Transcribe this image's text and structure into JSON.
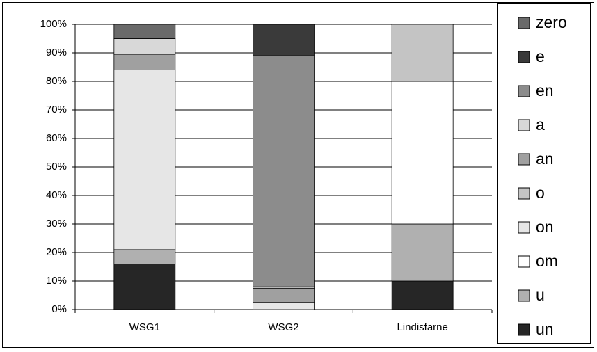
{
  "chart_data": {
    "type": "stacked_bar",
    "categories": [
      "WSG1",
      "WSG2",
      "Lindisfarne"
    ],
    "series": [
      {
        "name": "un",
        "color": "#262626",
        "values": [
          16,
          0,
          10
        ]
      },
      {
        "name": "u",
        "color": "#b0b0b0",
        "values": [
          5,
          0,
          20
        ]
      },
      {
        "name": "om",
        "color": "#ffffff",
        "values": [
          0,
          0,
          50
        ]
      },
      {
        "name": "on",
        "color": "#e6e6e6",
        "values": [
          63,
          2.5,
          0
        ]
      },
      {
        "name": "o",
        "color": "#c4c4c4",
        "values": [
          0,
          0,
          20
        ]
      },
      {
        "name": "an",
        "color": "#a0a0a0",
        "values": [
          5.5,
          5,
          0
        ]
      },
      {
        "name": "a",
        "color": "#d8d8d8",
        "values": [
          5.5,
          0.5,
          0
        ]
      },
      {
        "name": "en",
        "color": "#8c8c8c",
        "values": [
          0,
          81,
          0
        ]
      },
      {
        "name": "e",
        "color": "#3a3a3a",
        "values": [
          0,
          11,
          0
        ]
      },
      {
        "name": "zero",
        "color": "#6a6a6a",
        "values": [
          5,
          0,
          0
        ]
      }
    ],
    "ylim": [
      0,
      100
    ],
    "yticks": [
      {
        "value": 0,
        "label": "0%"
      },
      {
        "value": 10,
        "label": "10%"
      },
      {
        "value": 20,
        "label": "20%"
      },
      {
        "value": 30,
        "label": "30%"
      },
      {
        "value": 40,
        "label": "40%"
      },
      {
        "value": 50,
        "label": "50%"
      },
      {
        "value": 60,
        "label": "60%"
      },
      {
        "value": 70,
        "label": "70%"
      },
      {
        "value": 80,
        "label": "80%"
      },
      {
        "value": 90,
        "label": "90%"
      },
      {
        "value": 100,
        "label": "100%"
      }
    ],
    "grid": true
  }
}
